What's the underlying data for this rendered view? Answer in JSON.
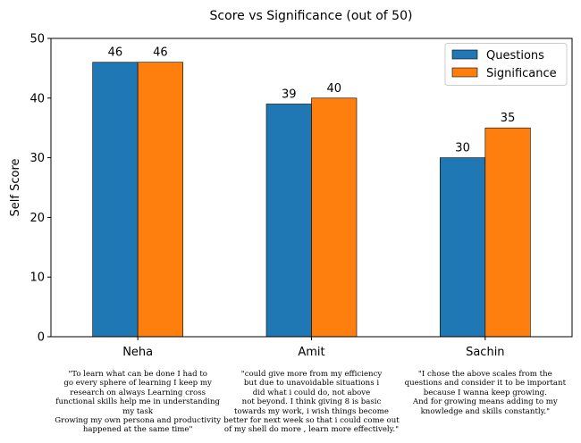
{
  "chart_data": {
    "type": "bar",
    "title": "Score vs Significance (out of 50)",
    "xlabel": "",
    "ylabel": "Self Score",
    "ylim": [
      0,
      50
    ],
    "yticks": [
      "0",
      "10",
      "20",
      "30",
      "40",
      "50"
    ],
    "categories": [
      "Neha",
      "Amit",
      "Sachin"
    ],
    "series": [
      {
        "name": "Questions",
        "color": "#1f77b4",
        "values": [
          46,
          39,
          30
        ]
      },
      {
        "name": "Significance",
        "color": "#ff7f0e",
        "values": [
          46,
          40,
          35
        ]
      }
    ],
    "legend_position": "top-right",
    "grid": false
  },
  "annotations": [
    "\"To learn what can be done I had to\ngo every sphere of learning I keep my\nresearch on always Learning cross\nfunctional skills help me in understanding\nmy task\nGrowing my own persona and productivity\nhappened at the same time\"",
    "\"could give more from my efficiency\nbut due to unavoidable situations i\ndid what i could do, not above\nnot beyond. I think giving 8 is basic\ntowards my work, i wish things become\nbetter for next week so that i could come out\nof my shell do more , learn more effectively.\"",
    "\"I chose the above scales from the\nquestions and consider it to be important\nbecause I wanna keep growing.\nAnd for growing means adding to my\nknowledge and skills constantly.\""
  ]
}
